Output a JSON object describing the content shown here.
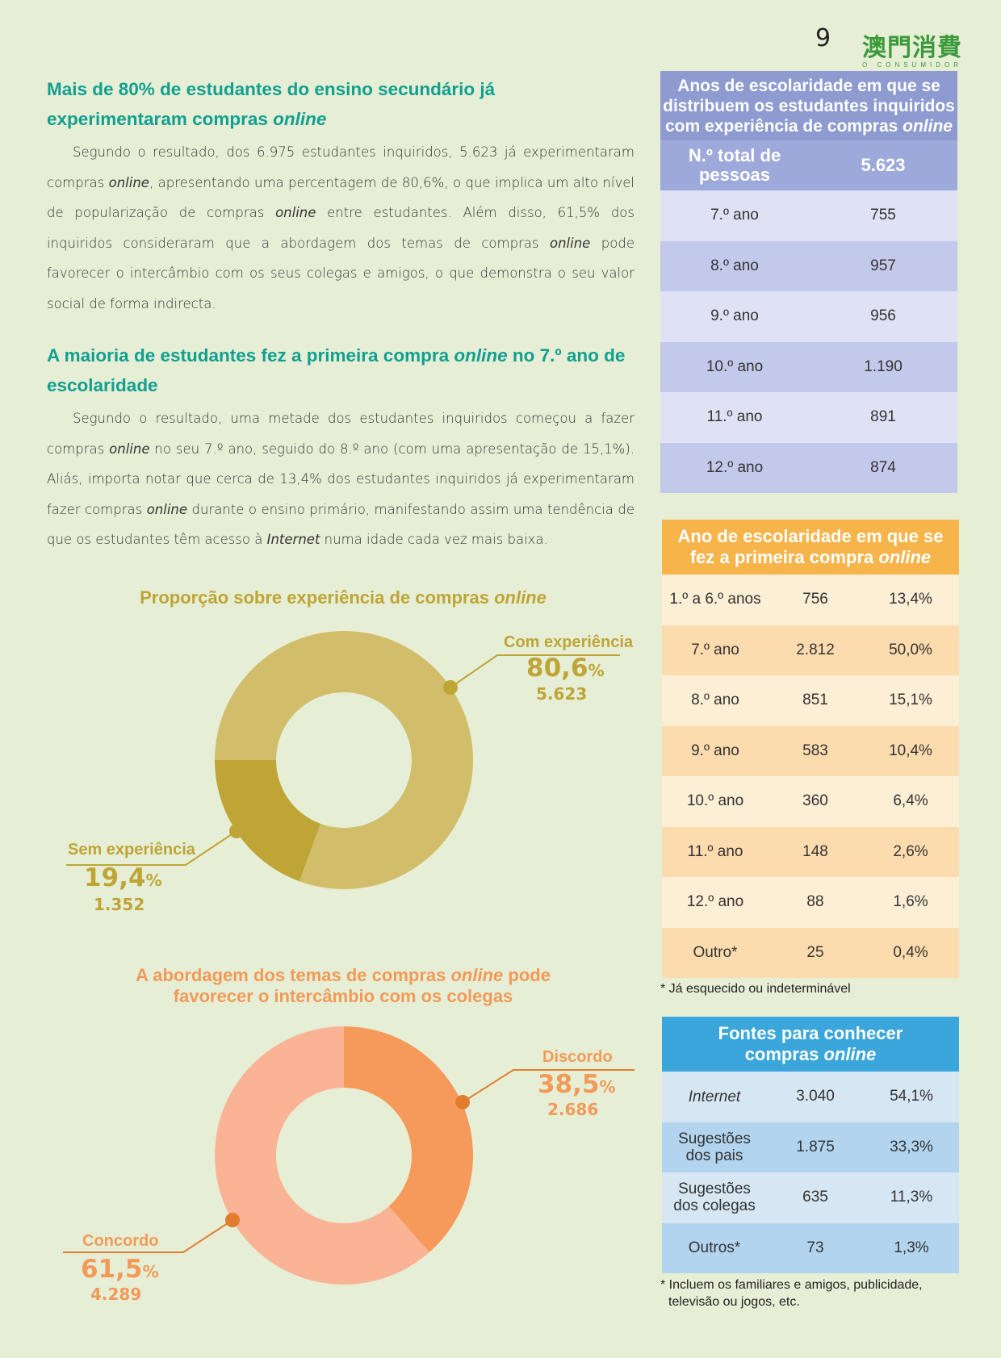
{
  "header": {
    "page_number": "9",
    "logo_cn": "澳門消費",
    "logo_sub": "O CONSUMIDOR"
  },
  "section1": {
    "title_part1": "Mais de 80% de estudantes do ensino secundário já experimentaram compras ",
    "title_em": "online",
    "body": [
      {
        "t": "Segundo o resultado, dos 6.975 estudantes inquiridos, 5.623 já experimentaram compras "
      },
      {
        "em": "online"
      },
      {
        "t": ", apresentando uma percentagem de 80,6%, o que implica um alto nível de popularização de compras "
      },
      {
        "em": "online"
      },
      {
        "t": " entre estudantes. Além disso, 61,5% dos inquiridos consideraram que a abordagem dos temas de compras "
      },
      {
        "em": "online"
      },
      {
        "t": " pode favorecer o intercâmbio com os seus colegas e amigos, o que demonstra o seu valor social de forma indirecta."
      }
    ]
  },
  "section2": {
    "title_part1": "A maioria de estudantes fez a primeira compra ",
    "title_em": "online",
    "title_part2": " no 7.º ano de escolaridade",
    "body": [
      {
        "t": "Segundo o resultado, uma metade dos estudantes inquiridos começou a fazer compras "
      },
      {
        "em": "online"
      },
      {
        "t": " no seu 7.º ano, seguido do 8.º ano (com uma apresentação de 15,1%). Aliás, importa notar que cerca de 13,4% dos estudantes inquiridos já experimentaram fazer compras "
      },
      {
        "em": "online"
      },
      {
        "t": " durante o ensino primário, manifestando assim uma tendência de que os estudantes têm acesso à "
      },
      {
        "em": "Internet"
      },
      {
        "t": " numa idade cada vez mais baixa."
      }
    ]
  },
  "chart_data": [
    {
      "type": "pie",
      "title_part1": "Proporção sobre experiência de compras ",
      "title_em": "online",
      "slices": [
        {
          "label": "Com experiência",
          "value": 80.6,
          "pct_num": "80,6",
          "pct_sign": "%",
          "count": "5.623",
          "color": "#d2bd6a"
        },
        {
          "label": "Sem experiência",
          "value": 19.4,
          "pct_num": "19,4",
          "pct_sign": "%",
          "count": "1.352",
          "color": "#bfa536"
        }
      ],
      "label_color": "#bfa536"
    },
    {
      "type": "pie",
      "title_line1_part1": "A abordagem dos temas de compras ",
      "title_line1_em": "online",
      "title_line1_part2": " pode",
      "title_line2": "favorecer o intercâmbio com os colegas",
      "slices": [
        {
          "label": "Discordo",
          "value": 38.5,
          "pct_num": "38,5",
          "pct_sign": "%",
          "count": "2.686",
          "color": "#f59a5a"
        },
        {
          "label": "Concordo",
          "value": 61.5,
          "pct_num": "61,5",
          "pct_sign": "%",
          "count": "4.289",
          "color": "#fab394"
        }
      ],
      "label_color": "#f39a58"
    }
  ],
  "table1": {
    "title_line1": "Anos de escolaridade em que se",
    "title_line2": "distribuem os estudantes inquiridos",
    "title_line3_part1": "com experiência de compras ",
    "title_line3_em": "online",
    "total_label_line1": "N.º total de",
    "total_label_line2": "pessoas",
    "total_value": "5.623",
    "rows": [
      {
        "year": "7.º ano",
        "count": "755"
      },
      {
        "year": "8.º ano",
        "count": "957"
      },
      {
        "year": "9.º ano",
        "count": "956"
      },
      {
        "year": "10.º ano",
        "count": "1.190"
      },
      {
        "year": "11.º ano",
        "count": "891"
      },
      {
        "year": "12.º ano",
        "count": "874"
      }
    ]
  },
  "table2": {
    "title_line1": "Ano de escolaridade em que se",
    "title_line2_part1": "fez a primeira compra ",
    "title_line2_em": "online",
    "rows": [
      {
        "year": "1.º a 6.º anos",
        "count": "756",
        "pct": "13,4%"
      },
      {
        "year": "7.º ano",
        "count": "2.812",
        "pct": "50,0%"
      },
      {
        "year": "8.º ano",
        "count": "851",
        "pct": "15,1%"
      },
      {
        "year": "9.º ano",
        "count": "583",
        "pct": "10,4%"
      },
      {
        "year": "10.º ano",
        "count": "360",
        "pct": "6,4%"
      },
      {
        "year": "11.º ano",
        "count": "148",
        "pct": "2,6%"
      },
      {
        "year": "12.º ano",
        "count": "88",
        "pct": "1,6%"
      },
      {
        "year": "Outro*",
        "count": "25",
        "pct": "0,4%"
      }
    ],
    "note": "* Já esquecido ou indeterminável"
  },
  "table3": {
    "title_line1": "Fontes para conhecer",
    "title_line2_part1": "compras ",
    "title_line2_em": "online",
    "rows": [
      {
        "source_line1": "Internet",
        "source_line2": "",
        "count": "3.040",
        "pct": "54,1%",
        "italic": true
      },
      {
        "source_line1": "Sugestões",
        "source_line2": "dos pais",
        "count": "1.875",
        "pct": "33,3%",
        "italic": false
      },
      {
        "source_line1": "Sugestões",
        "source_line2": "dos colegas",
        "count": "635",
        "pct": "11,3%",
        "italic": false
      },
      {
        "source_line1": "Outros*",
        "source_line2": "",
        "count": "73",
        "pct": "1,3%",
        "italic": false
      }
    ],
    "note_line1": "* Incluem os familiares e amigos, publicidade,",
    "note_line2": "televisão ou jogos, etc."
  }
}
